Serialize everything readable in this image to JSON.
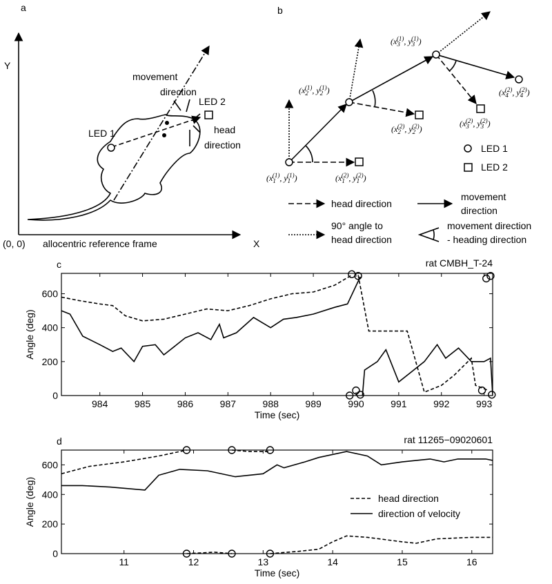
{
  "panel_a": {
    "label": "a",
    "y_axis": "Y",
    "x_axis": "X",
    "origin": "(0, 0)",
    "frame": "allocentric reference frame",
    "movement": [
      "movement",
      "direction"
    ],
    "led1": "LED 1",
    "led2": "LED 2",
    "head": [
      "head",
      "direction"
    ]
  },
  "panel_b": {
    "label": "b",
    "coords": [
      [
        "(x",
        "1",
        "(1)",
        ", y",
        "1",
        "(1)",
        ")"
      ],
      [
        "(x",
        "1",
        "(2)",
        ", y",
        "1",
        "(2)",
        ")"
      ],
      [
        "(x",
        "2",
        "(1)",
        ", y",
        "2",
        "(1)",
        ")"
      ],
      [
        "(x",
        "2",
        "(2)",
        ", y",
        "2",
        "(2)",
        ")"
      ],
      [
        "(x",
        "3",
        "(1)",
        ", y",
        "3",
        "(1)",
        ")"
      ],
      [
        "(x",
        "3",
        "(2)",
        ", y",
        "3",
        "(2)",
        ")"
      ],
      [
        "(x",
        "4",
        "(2)",
        ", y",
        "4",
        "(2)",
        ")"
      ]
    ],
    "led1": "LED 1",
    "led2": "LED 2",
    "head": "head direction",
    "movement": [
      "movement",
      "direction"
    ],
    "perpendicular": [
      "90° angle to",
      "head direction"
    ],
    "difference": [
      "movement direction",
      "- heading direction"
    ]
  },
  "chart_data": [
    {
      "type": "line",
      "panel_label": "c",
      "title": "rat CMBH_T-24",
      "xlabel": "Time (sec)",
      "ylabel": "Angle (deg)",
      "xlim": [
        983.1,
        993.2
      ],
      "xticks": [
        984,
        985,
        986,
        987,
        988,
        989,
        990,
        991,
        992,
        993
      ],
      "ylim": [
        0,
        720
      ],
      "yticks": [
        0,
        200,
        400,
        600
      ],
      "legend": null,
      "series": [
        {
          "style": "dashed",
          "color": "#000000",
          "x": [
            983.1,
            983.5,
            984,
            984.3,
            984.6,
            985,
            985.5,
            986,
            986.5,
            987,
            987.5,
            988,
            988.5,
            989,
            989.5,
            989.9,
            989.95,
            990.05,
            990.3,
            991.2,
            991.6,
            992,
            992.3,
            992.7,
            992.8,
            993.1
          ],
          "values": [
            580,
            560,
            540,
            530,
            470,
            440,
            450,
            480,
            510,
            500,
            530,
            570,
            600,
            610,
            650,
            710,
            null,
            710,
            380,
            380,
            20,
            60,
            120,
            220,
            60,
            30
          ]
        },
        {
          "style": "solid",
          "color": "#000000",
          "x": [
            983.1,
            983.3,
            983.6,
            984,
            984.3,
            984.5,
            984.8,
            985,
            985.3,
            985.5,
            985.8,
            986,
            986.3,
            986.6,
            986.8,
            986.9,
            987.2,
            987.6,
            988,
            988.3,
            988.6,
            989,
            989.5,
            989.8,
            990.1,
            990.12,
            990.15,
            990.2,
            990.5,
            990.7,
            991,
            991.3,
            991.6,
            991.9,
            992.1,
            992.4,
            992.7,
            993,
            993.15,
            993.2
          ],
          "values": [
            500,
            480,
            350,
            300,
            260,
            280,
            200,
            290,
            300,
            240,
            300,
            340,
            370,
            330,
            420,
            340,
            370,
            460,
            400,
            450,
            460,
            480,
            520,
            540,
            700,
            null,
            0,
            150,
            200,
            270,
            80,
            140,
            200,
            300,
            220,
            280,
            200,
            200,
            220,
            0
          ]
        }
      ],
      "markers": {
        "x": [
          989.9,
          990.05,
          989.85,
          990.0,
          990.1,
          993.05,
          993.15,
          992.95,
          993.18
        ],
        "y": [
          715,
          705,
          0,
          30,
          5,
          690,
          705,
          30,
          5
        ]
      }
    },
    {
      "type": "line",
      "panel_label": "d",
      "title": "rat 11265−09020601",
      "xlabel": "Time (sec)",
      "ylabel": "Angle (deg)",
      "xlim": [
        10.1,
        16.3
      ],
      "xticks": [
        11,
        12,
        13,
        14,
        15,
        16
      ],
      "ylim": [
        0,
        700
      ],
      "yticks": [
        0,
        200,
        400,
        600
      ],
      "legend": "lower right",
      "series": [
        {
          "name": "head direction",
          "style": "dashed",
          "color": "#000000",
          "x": [
            10.1,
            10.5,
            11,
            11.5,
            11.9,
            11.95,
            11.9,
            12.3,
            12.55,
            12.6,
            12.55,
            12.8,
            13.1,
            13.15,
            13.1,
            13.5,
            13.8,
            14,
            14.2,
            14.5,
            15,
            15.2,
            15.5,
            16,
            16.3
          ],
          "values": [
            540,
            590,
            620,
            660,
            700,
            null,
            0,
            10,
            0,
            null,
            700,
            690,
            690,
            null,
            0,
            15,
            30,
            80,
            120,
            110,
            80,
            70,
            100,
            110,
            110
          ]
        },
        {
          "name": "direction of velocity",
          "style": "solid",
          "color": "#000000",
          "x": [
            10.1,
            10.4,
            10.8,
            11.3,
            11.5,
            11.8,
            12.2,
            12.6,
            13,
            13.2,
            13.3,
            13.6,
            13.8,
            14.2,
            14.5,
            14.7,
            15,
            15.4,
            15.6,
            15.8,
            16.2,
            16.3
          ],
          "values": [
            460,
            460,
            450,
            430,
            530,
            570,
            560,
            520,
            540,
            600,
            580,
            620,
            650,
            690,
            660,
            600,
            620,
            640,
            620,
            640,
            640,
            630
          ]
        }
      ],
      "markers": {
        "x": [
          11.9,
          12.55,
          13.1,
          11.9,
          12.55,
          13.1
        ],
        "y": [
          700,
          700,
          700,
          0,
          0,
          0
        ]
      }
    }
  ]
}
